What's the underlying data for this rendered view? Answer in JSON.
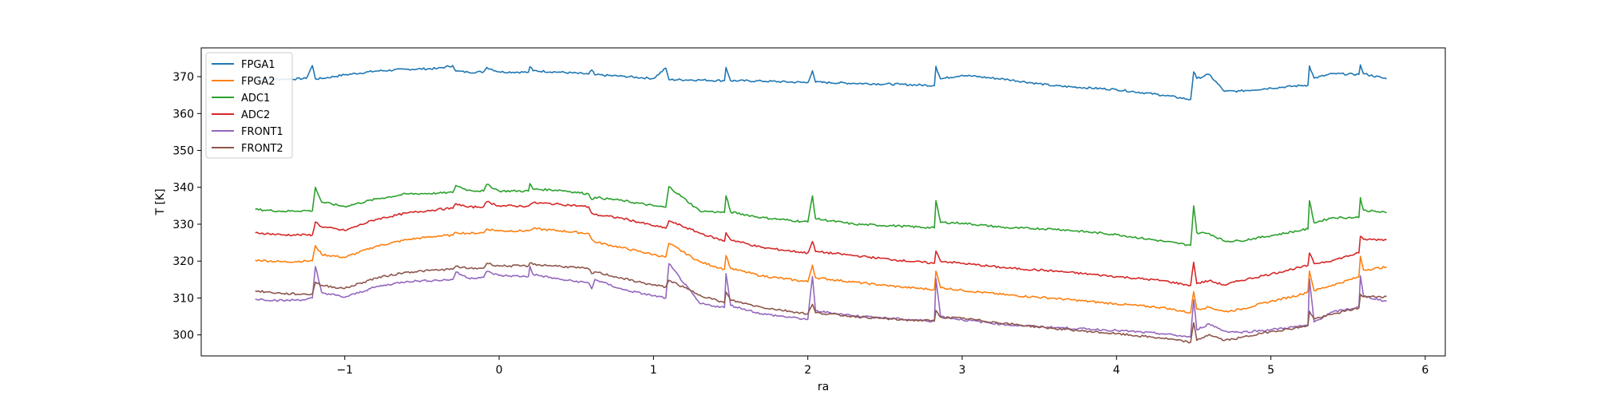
{
  "chart_data": {
    "type": "line",
    "xlabel": "ra",
    "ylabel": "T [K]",
    "xlim": [
      -1.93,
      6.13
    ],
    "ylim": [
      294.3,
      377.8
    ],
    "xticks": [
      -1,
      0,
      1,
      2,
      3,
      4,
      5,
      6
    ],
    "yticks": [
      300,
      310,
      320,
      330,
      340,
      350,
      360,
      370
    ],
    "xtick_labels": [
      "−1",
      "0",
      "1",
      "2",
      "3",
      "4",
      "5",
      "6"
    ],
    "ytick_labels": [
      "300",
      "310",
      "320",
      "330",
      "340",
      "350",
      "360",
      "370"
    ],
    "legend": {
      "loc": "upper-left"
    },
    "grid": false,
    "x": [
      -1.58,
      -1.4,
      -1.25,
      -1.21,
      -1.19,
      -1.15,
      -1.0,
      -0.8,
      -0.6,
      -0.4,
      -0.3,
      -0.28,
      -0.2,
      -0.1,
      -0.08,
      0.0,
      0.19,
      0.2,
      0.22,
      0.4,
      0.58,
      0.6,
      0.62,
      0.8,
      1.0,
      1.08,
      1.1,
      1.3,
      1.46,
      1.47,
      1.5,
      1.7,
      2.0,
      2.03,
      2.05,
      2.3,
      2.6,
      2.82,
      2.83,
      2.86,
      3.0,
      3.3,
      3.6,
      4.0,
      4.3,
      4.48,
      4.5,
      4.52,
      4.6,
      4.7,
      4.8,
      5.0,
      5.2,
      5.24,
      5.25,
      5.28,
      5.4,
      5.57,
      5.58,
      5.6,
      5.75
    ],
    "series": [
      {
        "name": "FPGA1",
        "color": "#1f77b4",
        "values": [
          369.2,
          369.3,
          369.5,
          373.0,
          369.4,
          369.5,
          370.5,
          371.5,
          372.0,
          372.2,
          373.0,
          371.5,
          371.2,
          371.3,
          372.5,
          371.3,
          371.2,
          372.7,
          371.6,
          371.2,
          370.7,
          371.8,
          370.5,
          370.1,
          369.5,
          372.3,
          369.2,
          369.1,
          368.9,
          372.5,
          368.9,
          368.8,
          368.4,
          371.6,
          368.5,
          368.2,
          367.9,
          367.6,
          372.8,
          369.4,
          370.4,
          369.2,
          367.5,
          366.5,
          365.0,
          363.8,
          371.3,
          369.5,
          370.6,
          366.0,
          366.1,
          366.9,
          367.6,
          367.7,
          372.9,
          369.6,
          370.8,
          370.6,
          373.2,
          370.8,
          369.4
        ]
      },
      {
        "name": "FPGA2",
        "color": "#ff7f0e",
        "values": [
          320.3,
          319.8,
          320.0,
          320.1,
          324.2,
          321.8,
          321.0,
          324.0,
          325.8,
          326.8,
          327.0,
          327.8,
          327.5,
          327.7,
          328.7,
          328.2,
          328.2,
          328.4,
          328.8,
          328.2,
          327.5,
          325.9,
          325.2,
          323.6,
          321.8,
          321.1,
          324.8,
          319.8,
          317.8,
          321.5,
          318.0,
          316.0,
          314.4,
          318.9,
          315.5,
          314.3,
          313.0,
          312.3,
          317.3,
          312.8,
          312.1,
          310.8,
          309.9,
          308.4,
          307.4,
          306.0,
          311.7,
          307.0,
          307.5,
          306.3,
          306.9,
          309.1,
          311.0,
          311.8,
          317.3,
          312.0,
          313.5,
          315.7,
          321.3,
          317.6,
          318.4
        ]
      },
      {
        "name": "ADC1",
        "color": "#2ca02c",
        "values": [
          334.0,
          333.5,
          333.7,
          333.6,
          340.0,
          336.0,
          334.8,
          336.8,
          338.2,
          338.4,
          338.6,
          340.5,
          339.2,
          339.0,
          340.8,
          339.0,
          339.0,
          341.0,
          339.5,
          339.2,
          338.2,
          336.7,
          337.3,
          336.4,
          335.0,
          334.6,
          340.2,
          333.6,
          333.2,
          337.7,
          333.3,
          331.8,
          330.6,
          337.7,
          331.5,
          330.0,
          329.5,
          329.0,
          336.4,
          330.5,
          330.3,
          329.0,
          328.7,
          327.2,
          325.4,
          324.3,
          335.0,
          327.7,
          327.5,
          325.4,
          325.5,
          326.9,
          328.4,
          328.7,
          336.4,
          330.4,
          331.8,
          331.8,
          337.2,
          333.8,
          333.1
        ]
      },
      {
        "name": "ADC2",
        "color": "#d62728",
        "values": [
          327.7,
          327.1,
          327.1,
          327.1,
          330.6,
          329.3,
          328.3,
          331.3,
          333.0,
          334.0,
          334.3,
          335.6,
          334.6,
          334.8,
          336.1,
          335.0,
          334.9,
          335.3,
          335.8,
          335.4,
          334.7,
          333.0,
          332.6,
          331.6,
          329.6,
          328.9,
          330.9,
          327.6,
          325.4,
          327.7,
          325.8,
          323.7,
          322.2,
          325.3,
          322.6,
          321.5,
          320.2,
          319.4,
          322.7,
          320.0,
          319.4,
          318.1,
          317.3,
          315.8,
          314.7,
          313.4,
          319.7,
          313.9,
          314.7,
          313.5,
          314.7,
          316.5,
          318.4,
          318.8,
          322.2,
          319.3,
          320.2,
          322.2,
          326.7,
          325.9,
          325.8
        ]
      },
      {
        "name": "FRONT1",
        "color": "#9467bd",
        "values": [
          309.7,
          309.3,
          309.6,
          310.0,
          318.5,
          311.5,
          310.2,
          313.0,
          314.5,
          314.8,
          315.0,
          317.0,
          315.4,
          315.6,
          317.2,
          316.1,
          315.8,
          318.6,
          316.4,
          315.0,
          314.1,
          312.5,
          315.0,
          312.3,
          310.6,
          310.0,
          319.3,
          308.5,
          307.4,
          316.6,
          308.0,
          305.7,
          304.2,
          315.8,
          306.5,
          305.2,
          304.3,
          303.7,
          315.3,
          305.0,
          304.1,
          302.7,
          302.0,
          301.2,
          300.3,
          299.4,
          309.5,
          301.4,
          303.0,
          301.0,
          300.7,
          301.4,
          302.4,
          302.5,
          315.2,
          303.5,
          306.2,
          307.5,
          316.0,
          310.5,
          309.1
        ]
      },
      {
        "name": "FRONT2",
        "color": "#8c564b",
        "values": [
          311.9,
          311.2,
          311.0,
          311.1,
          314.3,
          313.4,
          312.6,
          315.4,
          317.0,
          317.6,
          317.8,
          318.6,
          318.0,
          318.1,
          319.4,
          318.7,
          318.7,
          319.5,
          319.1,
          318.6,
          317.9,
          316.6,
          317.1,
          315.3,
          313.5,
          313.0,
          314.8,
          310.8,
          308.7,
          311.6,
          309.4,
          307.5,
          305.7,
          308.3,
          306.0,
          305.0,
          304.1,
          303.8,
          306.6,
          304.8,
          304.5,
          303.0,
          301.7,
          300.3,
          299.1,
          298.0,
          303.3,
          298.5,
          300.1,
          298.5,
          299.2,
          300.9,
          302.1,
          302.6,
          306.4,
          304.3,
          305.6,
          307.3,
          311.0,
          310.3,
          310.4
        ]
      }
    ]
  }
}
